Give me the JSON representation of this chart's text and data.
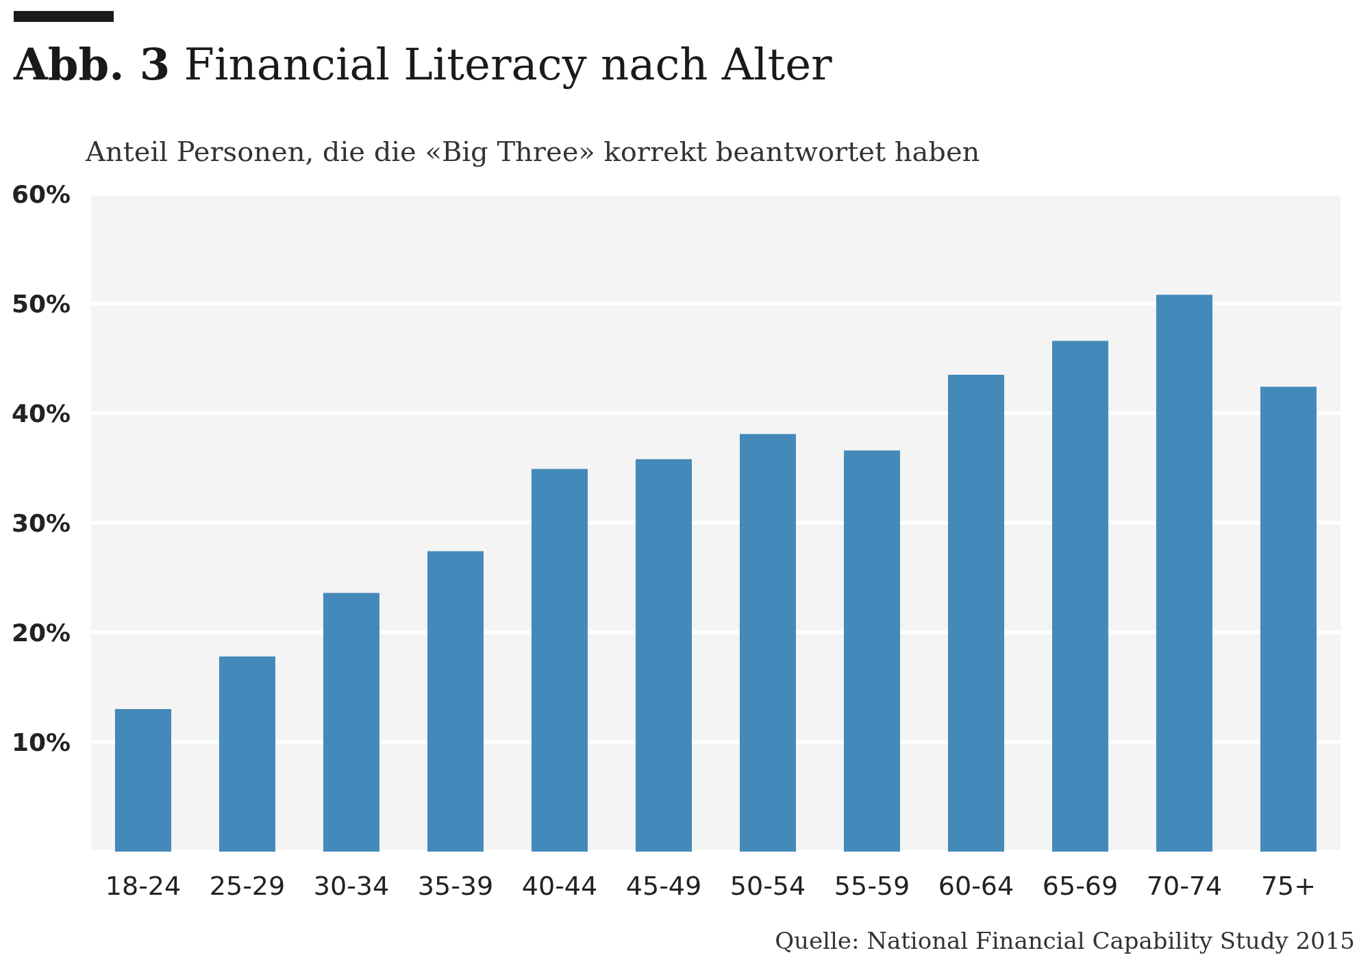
{
  "chart_data": {
    "type": "bar",
    "title": "Abb. 3 Financial Literacy nach Alter",
    "subtitle": "Anteil Personen, die die «Big Three» korrekt beantwortet haben",
    "categories": [
      "18-24",
      "25-29",
      "30-34",
      "35-39",
      "40-44",
      "45-49",
      "50-54",
      "55-59",
      "60-64",
      "65-69",
      "70-74",
      "75+"
    ],
    "values": [
      13.0,
      17.8,
      23.6,
      27.4,
      34.9,
      35.8,
      38.1,
      36.6,
      43.5,
      46.6,
      50.8,
      42.4
    ],
    "color": "#4389b9",
    "ylim": [
      0,
      60
    ],
    "yticks": [
      {
        "value": 0,
        "label": null
      },
      {
        "value": 10,
        "label": "10%"
      },
      {
        "value": 20,
        "label": "20%"
      },
      {
        "value": 30,
        "label": "30%"
      },
      {
        "value": 40,
        "label": "40%"
      },
      {
        "value": 50,
        "label": "50%"
      },
      {
        "value": 60,
        "label": "60%"
      }
    ],
    "grid": "y",
    "annotations": [
      "Quelle: National Financial Capability Study 2015"
    ]
  }
}
